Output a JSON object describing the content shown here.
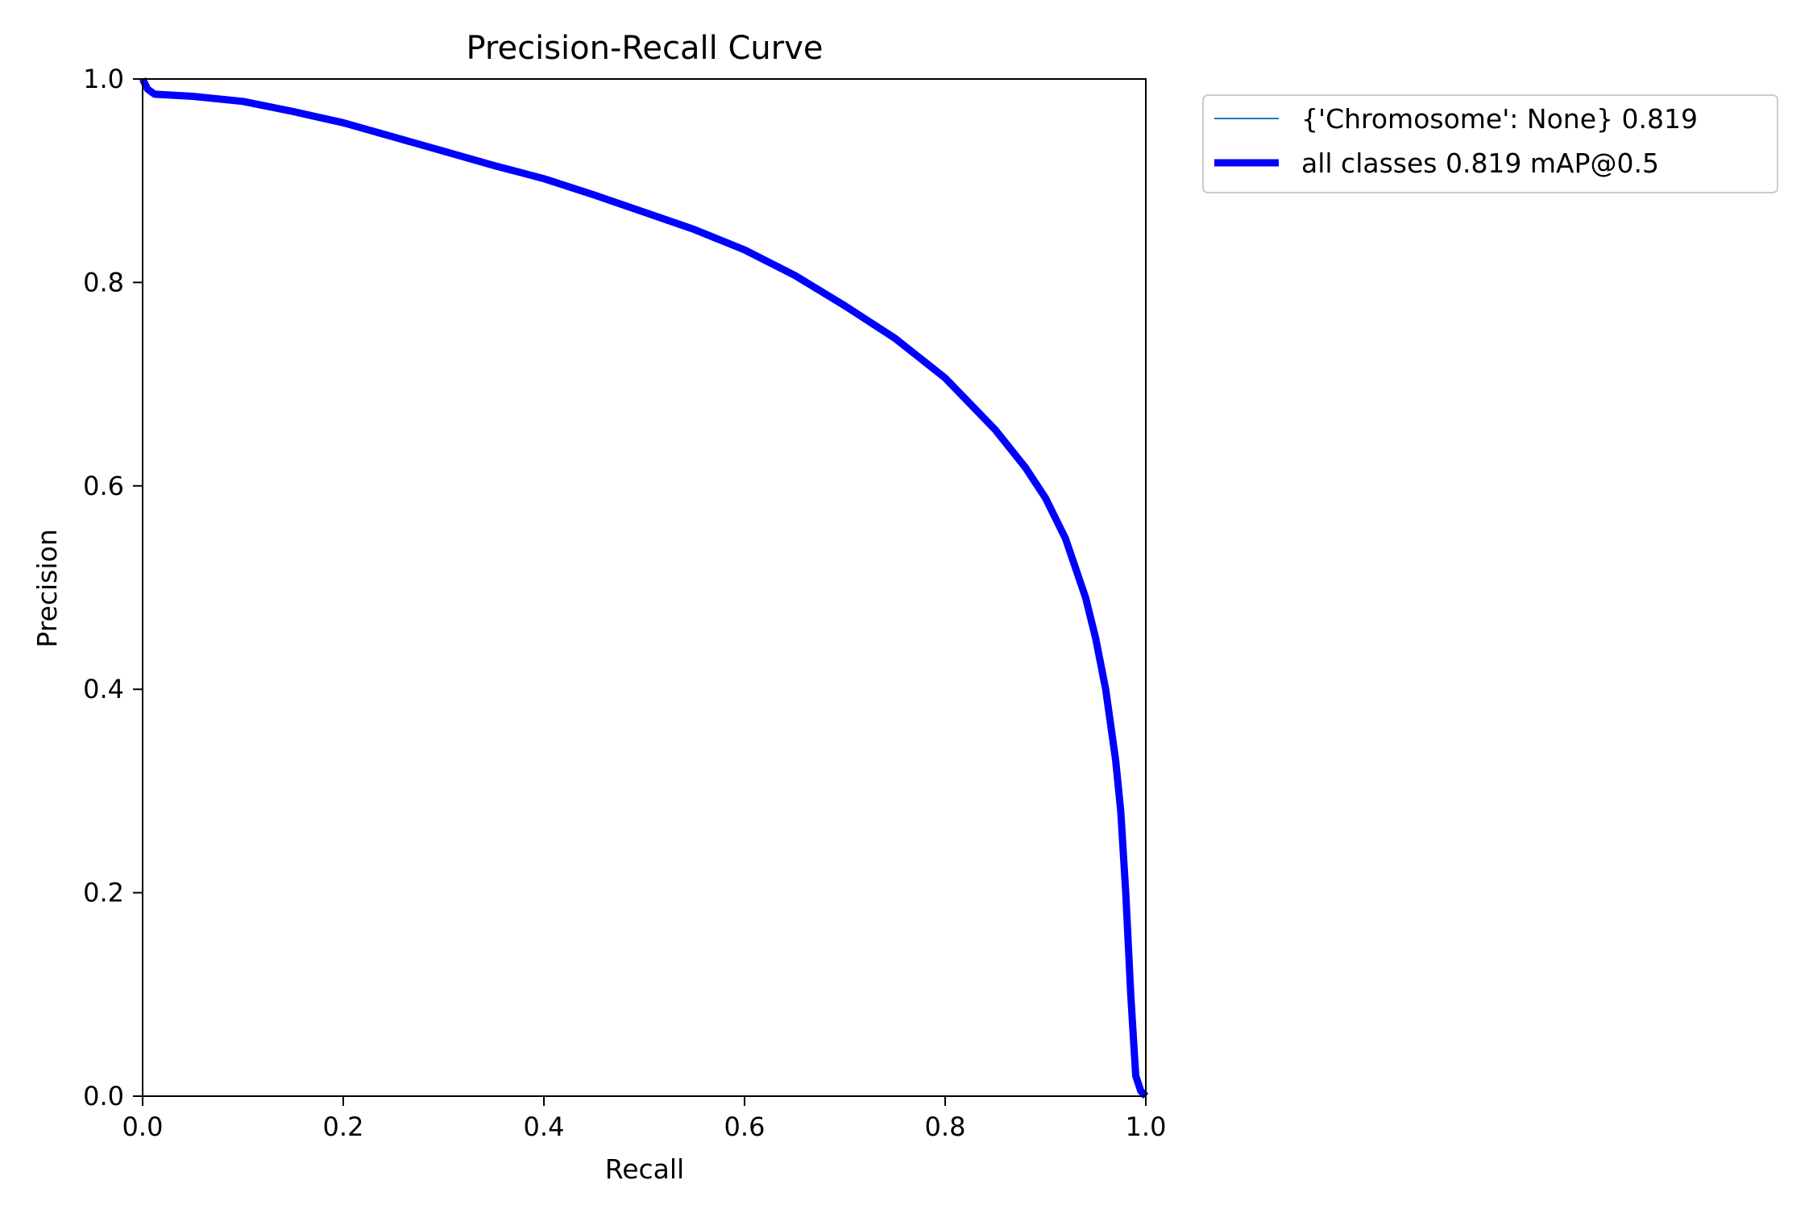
{
  "chart_data": {
    "type": "line",
    "title": "Precision-Recall Curve",
    "xlabel": "Recall",
    "ylabel": "Precision",
    "xlim": [
      0,
      1
    ],
    "ylim": [
      0,
      1
    ],
    "xticks": [
      "0.0",
      "0.2",
      "0.4",
      "0.6",
      "0.8",
      "1.0"
    ],
    "yticks": [
      "0.0",
      "0.2",
      "0.4",
      "0.6",
      "0.8",
      "1.0"
    ],
    "grid": false,
    "legend_position": "outside upper right",
    "series": [
      {
        "name": "{'Chromosome': None} 0.819",
        "color": "#1f77b4",
        "x": [
          0,
          0.005,
          0.012,
          0.05,
          0.1,
          0.15,
          0.2,
          0.25,
          0.3,
          0.35,
          0.4,
          0.45,
          0.5,
          0.55,
          0.6,
          0.65,
          0.7,
          0.75,
          0.8,
          0.85,
          0.88,
          0.9,
          0.92,
          0.94,
          0.95,
          0.96,
          0.97,
          0.975,
          0.98,
          0.985,
          0.99,
          0.995,
          1.0
        ],
        "y": [
          1.0,
          0.99,
          0.985,
          0.983,
          0.978,
          0.968,
          0.957,
          0.943,
          0.929,
          0.915,
          0.902,
          0.886,
          0.869,
          0.852,
          0.832,
          0.807,
          0.777,
          0.745,
          0.706,
          0.655,
          0.618,
          0.588,
          0.548,
          0.49,
          0.45,
          0.4,
          0.33,
          0.28,
          0.2,
          0.1,
          0.02,
          0.005,
          0.0
        ]
      },
      {
        "name": "all classes 0.819 mAP@0.5",
        "color": "#0000ff",
        "x": [
          0,
          0.005,
          0.012,
          0.05,
          0.1,
          0.15,
          0.2,
          0.25,
          0.3,
          0.35,
          0.4,
          0.45,
          0.5,
          0.55,
          0.6,
          0.65,
          0.7,
          0.75,
          0.8,
          0.85,
          0.88,
          0.9,
          0.92,
          0.94,
          0.95,
          0.96,
          0.97,
          0.975,
          0.98,
          0.985,
          0.99,
          0.995,
          1.0
        ],
        "y": [
          1.0,
          0.99,
          0.985,
          0.983,
          0.978,
          0.968,
          0.957,
          0.943,
          0.929,
          0.915,
          0.902,
          0.886,
          0.869,
          0.852,
          0.832,
          0.807,
          0.777,
          0.745,
          0.706,
          0.655,
          0.618,
          0.588,
          0.548,
          0.49,
          0.45,
          0.4,
          0.33,
          0.28,
          0.2,
          0.1,
          0.02,
          0.005,
          0.0
        ]
      }
    ]
  }
}
